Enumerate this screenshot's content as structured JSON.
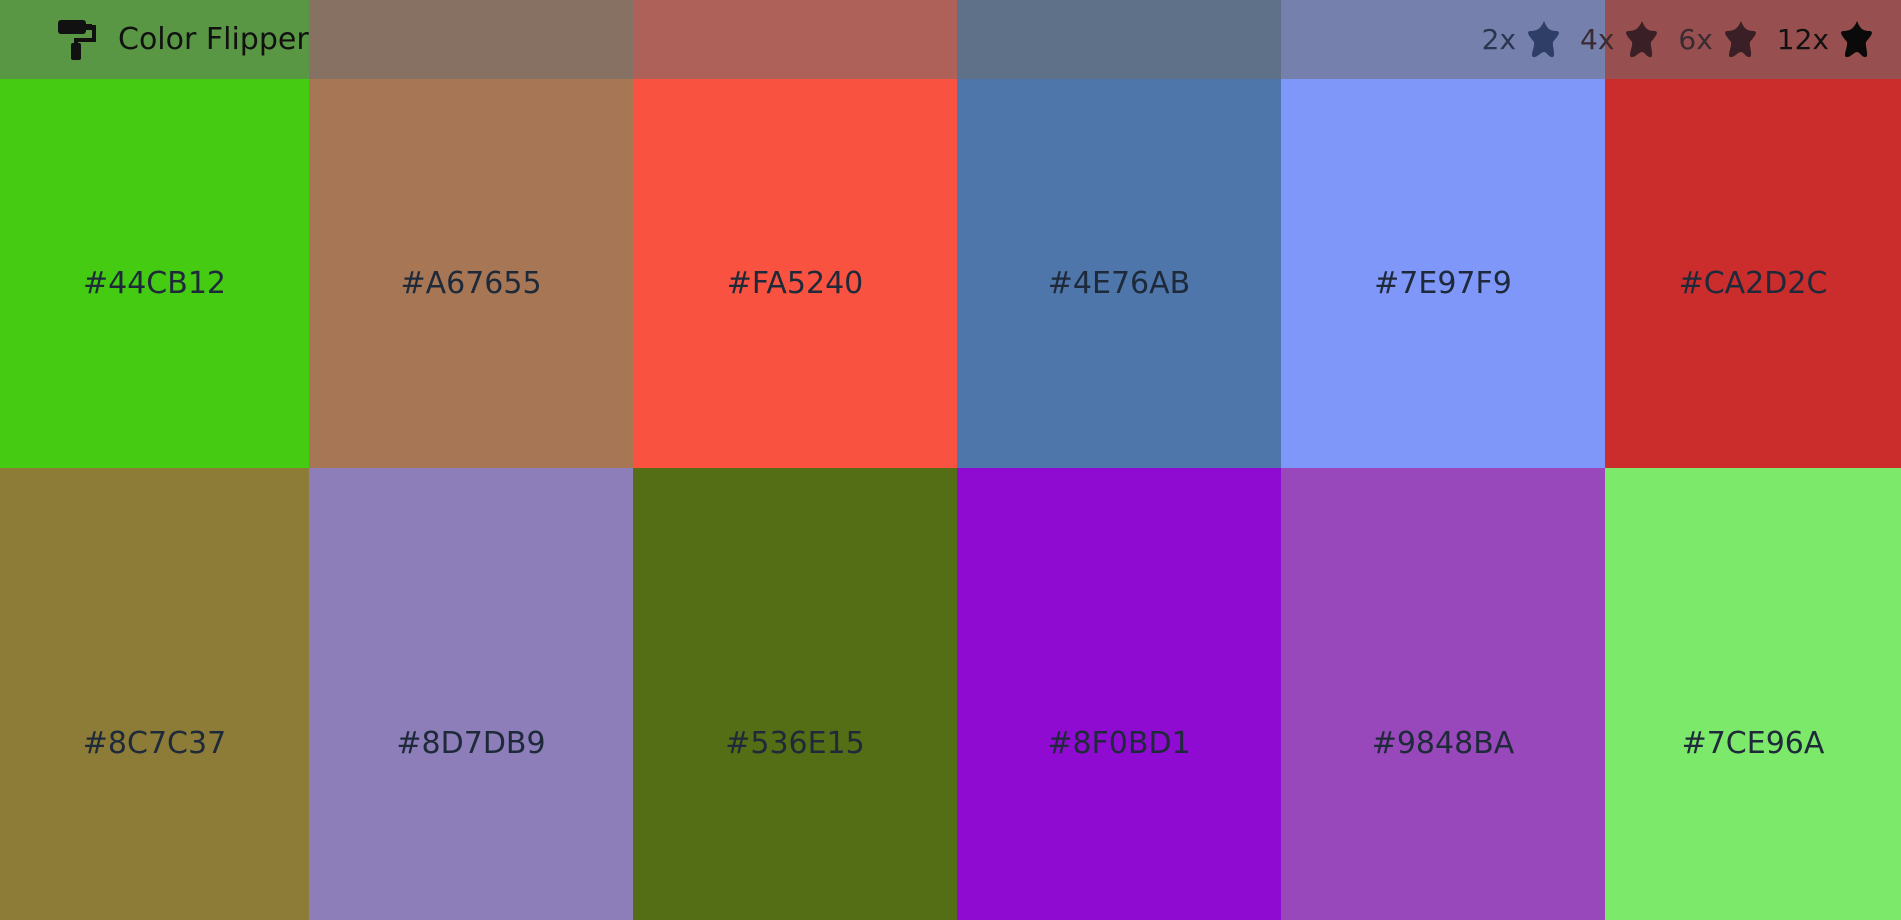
{
  "app": {
    "title": "Color Flipper",
    "logo_icon": "paint-roller-icon"
  },
  "multipliers": [
    {
      "label": "2x",
      "icon": "star-icon",
      "text_color": "#2b3550",
      "star_color": "#2e3e66"
    },
    {
      "label": "4x",
      "icon": "star-icon",
      "text_color": "#3a2a32",
      "star_color": "#3a2026"
    },
    {
      "label": "6x",
      "icon": "star-icon",
      "text_color": "#3a2a32",
      "star_color": "#3a2026"
    },
    {
      "label": "12x",
      "icon": "star-icon",
      "text_color": "#111111",
      "star_color": "#0a0a0a"
    }
  ],
  "colors": [
    {
      "hex": "#44CB12",
      "color": "#44CB12"
    },
    {
      "hex": "#A67655",
      "color": "#A67655"
    },
    {
      "hex": "#FA5240",
      "color": "#FA5240"
    },
    {
      "hex": "#4E76AB",
      "color": "#4E76AB"
    },
    {
      "hex": "#7E97F9",
      "color": "#7E97F9"
    },
    {
      "hex": "#CA2D2C",
      "color": "#CA2D2C"
    },
    {
      "hex": "#8C7C37",
      "color": "#8C7C37"
    },
    {
      "hex": "#8D7DB9",
      "color": "#8D7DB9"
    },
    {
      "hex": "#536E15",
      "color": "#536E15"
    },
    {
      "hex": "#8F0BD1",
      "color": "#8F0BD1"
    },
    {
      "hex": "#9848BA",
      "color": "#9848BA"
    },
    {
      "hex": "#7CE96A",
      "color": "#7CE96A"
    }
  ]
}
